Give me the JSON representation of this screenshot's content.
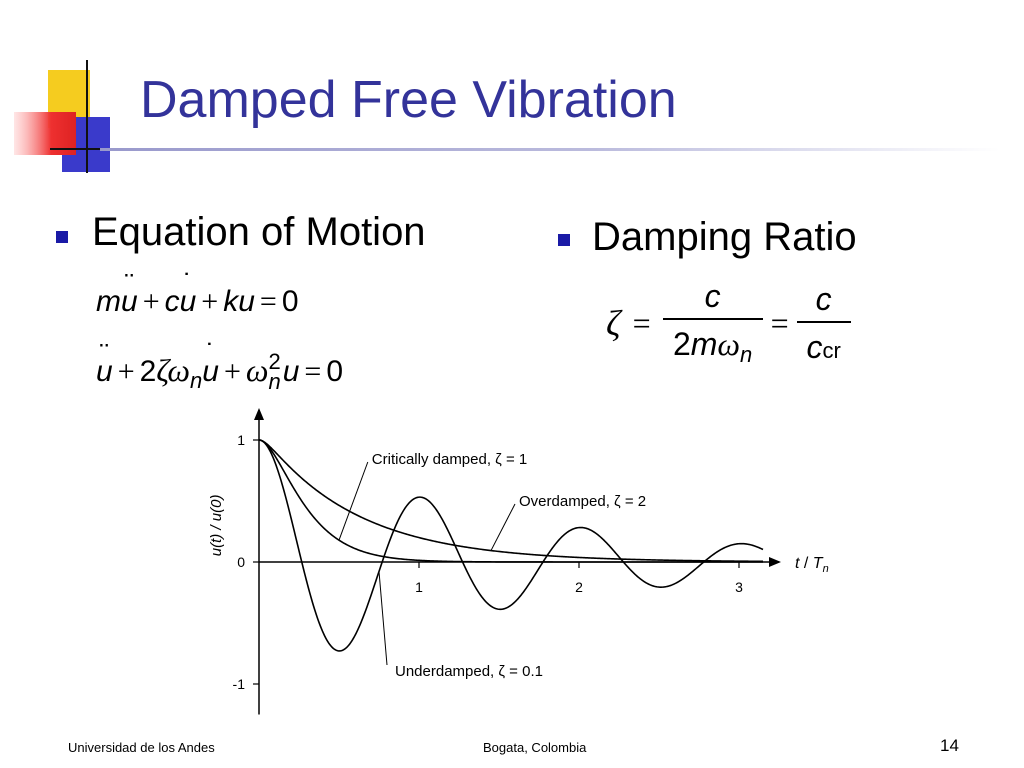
{
  "slide": {
    "title": "Damped Free Vibration",
    "bullets": [
      {
        "label": "Equation of Motion"
      },
      {
        "label": "Damping Ratio"
      }
    ],
    "colors": {
      "title": "#33339a",
      "bullet": "#1a1aa6",
      "logo_yellow": "#f5cc1f",
      "logo_red": "#ee3333",
      "logo_blue": "#3333cc"
    }
  },
  "equations": {
    "eq1": {
      "m": "m",
      "c": "c",
      "k": "k",
      "u": "u",
      "plus": "+",
      "equals": "=",
      "zero": "0"
    },
    "eq2": {
      "two": "2",
      "zeta": "ζ",
      "omega": "ω",
      "n": "n",
      "sq": "2",
      "u": "u",
      "plus": "+",
      "equals": "=",
      "zero": "0"
    },
    "ratio": {
      "zeta": "ζ",
      "equals": "=",
      "num1": "c",
      "den1_two": "2",
      "den1_m": "m",
      "den1_omega": "ω",
      "den1_n": "n",
      "num2": "c",
      "den2_c": "c",
      "den2_sub": "cr"
    }
  },
  "chart_data": {
    "type": "line",
    "xlabel_t": "t",
    "xlabel_sep": " / ",
    "xlabel_T": "T",
    "xlabel_n": "n",
    "ylabel": "u(t) / u(0)",
    "xlim": [
      0,
      3.25
    ],
    "ylim": [
      -1,
      1
    ],
    "x_ticks": [
      1,
      2,
      3
    ],
    "y_ticks": [
      1,
      0,
      -1
    ],
    "series": [
      {
        "zeta": 1,
        "t_max": 3.15
      },
      {
        "zeta": 2,
        "t_max": 3.15
      },
      {
        "zeta": 0.1,
        "t_max": 3.15
      }
    ],
    "annotations": [
      {
        "text": "Critically damped, ζ = 1",
        "target_series": 0,
        "target_x": 0.5
      },
      {
        "text": "Overdamped, ζ = 2",
        "target_series": 1,
        "target_x": 1.45
      },
      {
        "text": "Underdamped, ζ = 0.1",
        "target_series": 2,
        "target_x": 0.75
      }
    ]
  },
  "footer": {
    "left": "Universidad de los Andes",
    "center": "Bogata, Colombia",
    "page": "14"
  }
}
